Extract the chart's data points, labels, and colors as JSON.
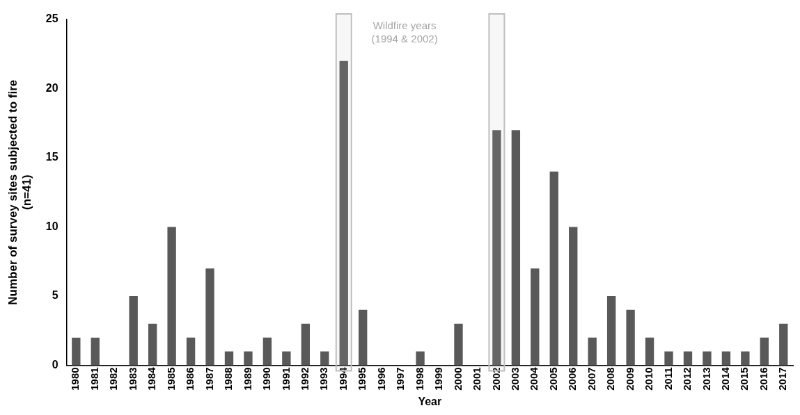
{
  "chart_data": {
    "type": "bar",
    "xlabel": "Year",
    "ylabel": "Number of survey sites subjected to fire\n(n=41)",
    "categories": [
      "1980",
      "1981",
      "1982",
      "1983",
      "1984",
      "1985",
      "1986",
      "1987",
      "1988",
      "1989",
      "1990",
      "1991",
      "1992",
      "1993",
      "1994",
      "1995",
      "1996",
      "1997",
      "1998",
      "1999",
      "2000",
      "2001",
      "2002",
      "2003",
      "2004",
      "2005",
      "2006",
      "2007",
      "2008",
      "2009",
      "2010",
      "2011",
      "2012",
      "2013",
      "2014",
      "2015",
      "2016",
      "2017"
    ],
    "values": [
      2,
      2,
      0,
      5,
      3,
      10,
      2,
      7,
      1,
      1,
      2,
      1,
      3,
      1,
      22,
      4,
      0,
      0,
      1,
      0,
      3,
      0,
      17,
      17,
      7,
      14,
      10,
      2,
      5,
      4,
      2,
      1,
      1,
      1,
      1,
      1,
      2,
      3
    ],
    "color": "#595959",
    "ylim": [
      0,
      25
    ],
    "yticks": [
      0,
      5,
      10,
      15,
      20,
      25
    ],
    "grid": false,
    "legend": false,
    "bands": [
      {
        "axis": "x",
        "from": "1994",
        "to": "1994",
        "color": "#bfbfbf"
      },
      {
        "axis": "x",
        "from": "2002",
        "to": "2002",
        "color": "#bfbfbf"
      }
    ],
    "annotations": [
      "Wildfire years\n(1994 & 2002)"
    ]
  }
}
